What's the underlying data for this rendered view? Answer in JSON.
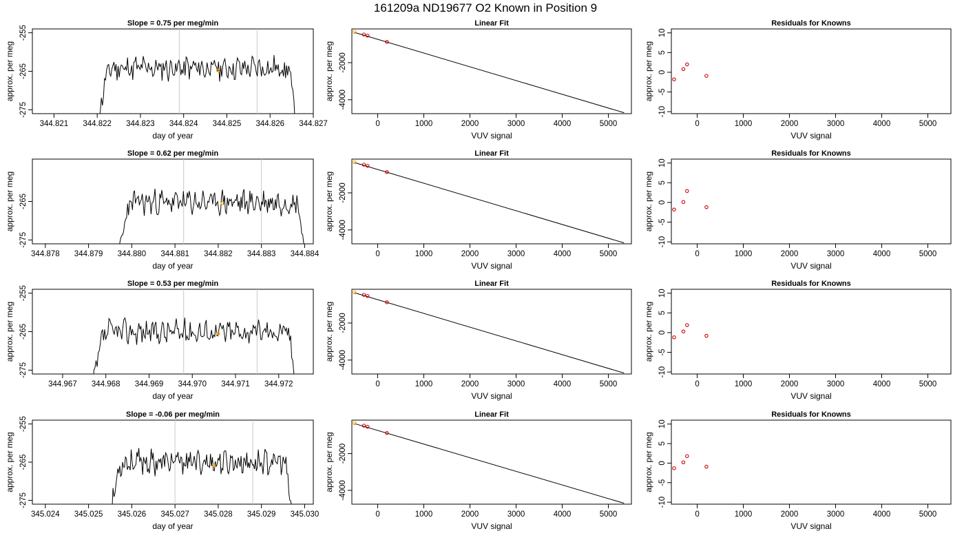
{
  "figure": {
    "title": "161209a     ND19677   O2 Known in Position  9"
  },
  "chart_data": [
    {
      "type": "line",
      "title": "Slope =  0.75  per meg/min",
      "xlabel": "day of year",
      "ylabel": "approx. per meg",
      "xlim": [
        344.8205,
        344.827
      ],
      "ylim": [
        -276,
        -254
      ],
      "xticks": [
        344.821,
        344.822,
        344.823,
        344.824,
        344.825,
        344.826,
        344.827
      ],
      "xtick_labels": [
        "344.821",
        "344.822",
        "344.823",
        "344.824",
        "344.825",
        "344.826",
        "344.827"
      ],
      "yticks": [
        -255,
        -265,
        -275
      ],
      "ytick_labels": [
        "-255",
        "-265",
        "-275"
      ],
      "vlines": [
        344.8239,
        344.8257
      ],
      "start": 344.822,
      "end": 344.8266,
      "plateau": -264.2,
      "seed": 11,
      "highlight": {
        "x": 344.8248,
        "y": -264.8
      },
      "grid": false
    },
    {
      "type": "scatter",
      "title": "Linear Fit",
      "xlabel": "VUV signal",
      "ylabel": "approx. per meg",
      "xlim": [
        -560,
        5500
      ],
      "ylim": [
        -4750,
        -180
      ],
      "xticks": [
        0,
        1000,
        2000,
        3000,
        4000,
        5000
      ],
      "xtick_labels": [
        "0",
        "1000",
        "2000",
        "3000",
        "4000",
        "5000"
      ],
      "yticks": [
        -2000,
        -4000
      ],
      "ytick_labels": [
        "-2000",
        "-4000"
      ],
      "points": [
        {
          "x": -500,
          "y": -350,
          "highlight": true
        },
        {
          "x": -300,
          "y": -480
        },
        {
          "x": -220,
          "y": -540
        },
        {
          "x": 200,
          "y": -880
        }
      ],
      "fit_line": [
        [
          -500,
          -370
        ],
        [
          5340,
          -4700
        ]
      ],
      "grid": false
    },
    {
      "type": "scatter",
      "title": "Residuals for Knowns",
      "xlabel": "VUV signal",
      "ylabel": "approx. per meg",
      "xlim": [
        -560,
        5500
      ],
      "ylim": [
        -10.5,
        11
      ],
      "xticks": [
        0,
        1000,
        2000,
        3000,
        4000,
        5000
      ],
      "xtick_labels": [
        "0",
        "1000",
        "2000",
        "3000",
        "4000",
        "5000"
      ],
      "yticks": [
        10,
        5,
        0,
        -5,
        -10
      ],
      "ytick_labels": [
        "10",
        "5",
        "0",
        "-5",
        "-10"
      ],
      "points": [
        {
          "x": -500,
          "y": -1.8
        },
        {
          "x": -300,
          "y": 0.8
        },
        {
          "x": -220,
          "y": 2.0
        },
        {
          "x": 200,
          "y": -0.9
        }
      ],
      "grid": false
    },
    {
      "type": "line",
      "title": "Slope =  0.62  per meg/min",
      "xlabel": "day of year",
      "ylabel": "approx. per meg",
      "xlim": [
        344.8777,
        344.8842
      ],
      "ylim": [
        -276,
        -254
      ],
      "xticks": [
        344.878,
        344.879,
        344.88,
        344.881,
        344.882,
        344.883,
        344.884
      ],
      "xtick_labels": [
        "344.878",
        "344.879",
        "344.880",
        "344.881",
        "344.882",
        "344.883",
        "344.884"
      ],
      "yticks": [
        -265,
        -275
      ],
      "ytick_labels": [
        "-265",
        "-275"
      ],
      "vlines": [
        344.8812,
        344.883
      ],
      "start": 344.8797,
      "end": 344.884,
      "plateau": -265.2,
      "seed": 23,
      "highlight": {
        "x": 344.8821,
        "y": -265.5
      },
      "grid": false
    },
    {
      "type": "scatter",
      "title": "Linear Fit",
      "xlabel": "VUV signal",
      "ylabel": "approx. per meg",
      "xlim": [
        -560,
        5500
      ],
      "ylim": [
        -4750,
        -180
      ],
      "xticks": [
        0,
        1000,
        2000,
        3000,
        4000,
        5000
      ],
      "xtick_labels": [
        "0",
        "1000",
        "2000",
        "3000",
        "4000",
        "5000"
      ],
      "yticks": [
        -2000,
        -4000
      ],
      "ytick_labels": [
        "-2000",
        "-4000"
      ],
      "points": [
        {
          "x": -500,
          "y": -350,
          "highlight": true
        },
        {
          "x": -300,
          "y": -480
        },
        {
          "x": -220,
          "y": -540
        },
        {
          "x": 200,
          "y": -880
        }
      ],
      "fit_line": [
        [
          -500,
          -370
        ],
        [
          5340,
          -4700
        ]
      ],
      "grid": false
    },
    {
      "type": "scatter",
      "title": "Residuals for Knowns",
      "xlabel": "VUV signal",
      "ylabel": "approx. per meg",
      "xlim": [
        -560,
        5500
      ],
      "ylim": [
        -10.5,
        11
      ],
      "xticks": [
        0,
        1000,
        2000,
        3000,
        4000,
        5000
      ],
      "xtick_labels": [
        "0",
        "1000",
        "2000",
        "3000",
        "4000",
        "5000"
      ],
      "yticks": [
        10,
        5,
        0,
        -5,
        -10
      ],
      "ytick_labels": [
        "10",
        "5",
        "0",
        "-5",
        "-10"
      ],
      "points": [
        {
          "x": -500,
          "y": -1.8
        },
        {
          "x": -300,
          "y": 0.1
        },
        {
          "x": -220,
          "y": 2.9
        },
        {
          "x": 200,
          "y": -1.2
        }
      ],
      "grid": false
    },
    {
      "type": "line",
      "title": "Slope =  0.53  per meg/min",
      "xlabel": "day of year",
      "ylabel": "approx. per meg",
      "xlim": [
        344.9663,
        344.9728
      ],
      "ylim": [
        -276,
        -254
      ],
      "xticks": [
        344.967,
        344.968,
        344.969,
        344.97,
        344.971,
        344.972
      ],
      "xtick_labels": [
        "344.967",
        "344.968",
        "344.969",
        "344.970",
        "344.971",
        "344.972"
      ],
      "yticks": [
        -255,
        -265,
        -275
      ],
      "ytick_labels": [
        "-255",
        "-265",
        "-275"
      ],
      "vlines": [
        344.9698,
        344.9715
      ],
      "start": 344.9677,
      "end": 344.9724,
      "plateau": -265.0,
      "seed": 37,
      "highlight": {
        "x": 344.9706,
        "y": -265.5
      },
      "grid": false
    },
    {
      "type": "scatter",
      "title": "Linear Fit",
      "xlabel": "VUV signal",
      "ylabel": "approx. per meg",
      "xlim": [
        -560,
        5500
      ],
      "ylim": [
        -4750,
        -180
      ],
      "xticks": [
        0,
        1000,
        2000,
        3000,
        4000,
        5000
      ],
      "xtick_labels": [
        "0",
        "1000",
        "2000",
        "3000",
        "4000",
        "5000"
      ],
      "yticks": [
        -2000,
        -4000
      ],
      "ytick_labels": [
        "-2000",
        "-4000"
      ],
      "points": [
        {
          "x": -500,
          "y": -350,
          "highlight": true
        },
        {
          "x": -300,
          "y": -480
        },
        {
          "x": -220,
          "y": -540
        },
        {
          "x": 200,
          "y": -880
        }
      ],
      "fit_line": [
        [
          -500,
          -370
        ],
        [
          5340,
          -4700
        ]
      ],
      "grid": false
    },
    {
      "type": "scatter",
      "title": "Residuals for Knowns",
      "xlabel": "VUV signal",
      "ylabel": "approx. per meg",
      "xlim": [
        -560,
        5500
      ],
      "ylim": [
        -10.5,
        11
      ],
      "xticks": [
        0,
        1000,
        2000,
        3000,
        4000,
        5000
      ],
      "xtick_labels": [
        "0",
        "1000",
        "2000",
        "3000",
        "4000",
        "5000"
      ],
      "yticks": [
        10,
        5,
        0,
        -5,
        -10
      ],
      "ytick_labels": [
        "10",
        "5",
        "0",
        "-5",
        "-10"
      ],
      "points": [
        {
          "x": -500,
          "y": -1.2
        },
        {
          "x": -300,
          "y": 0.3
        },
        {
          "x": -220,
          "y": 1.9
        },
        {
          "x": 200,
          "y": -0.8
        }
      ],
      "grid": false
    },
    {
      "type": "line",
      "title": "Slope =  -0.06  per meg/min",
      "xlabel": "day of year",
      "ylabel": "approx. per meg",
      "xlim": [
        345.0237,
        345.0302
      ],
      "ylim": [
        -276,
        -254
      ],
      "xticks": [
        345.024,
        345.025,
        345.026,
        345.027,
        345.028,
        345.029,
        345.03
      ],
      "xtick_labels": [
        "345.024",
        "345.025",
        "345.026",
        "345.027",
        "345.028",
        "345.029",
        "345.030"
      ],
      "yticks": [
        -255,
        -265,
        -275
      ],
      "ytick_labels": [
        "-255",
        "-265",
        "-275"
      ],
      "vlines": [
        345.027,
        345.0288
      ],
      "start": 345.0255,
      "end": 345.0297,
      "plateau": -265.0,
      "seed": 53,
      "highlight": {
        "x": 345.0279,
        "y": -265.8
      },
      "grid": false
    },
    {
      "type": "scatter",
      "title": "Linear Fit",
      "xlabel": "VUV signal",
      "ylabel": "approx. per meg",
      "xlim": [
        -560,
        5500
      ],
      "ylim": [
        -4750,
        -180
      ],
      "xticks": [
        0,
        1000,
        2000,
        3000,
        4000,
        5000
      ],
      "xtick_labels": [
        "0",
        "1000",
        "2000",
        "3000",
        "4000",
        "5000"
      ],
      "yticks": [
        -2000,
        -4000
      ],
      "ytick_labels": [
        "-2000",
        "-4000"
      ],
      "points": [
        {
          "x": -500,
          "y": -350,
          "highlight": true
        },
        {
          "x": -300,
          "y": -480
        },
        {
          "x": -220,
          "y": -540
        },
        {
          "x": 200,
          "y": -880
        }
      ],
      "fit_line": [
        [
          -500,
          -370
        ],
        [
          5340,
          -4700
        ]
      ],
      "grid": false
    },
    {
      "type": "scatter",
      "title": "Residuals for Knowns",
      "xlabel": "VUV signal",
      "ylabel": "approx. per meg",
      "xlim": [
        -560,
        5500
      ],
      "ylim": [
        -10.5,
        11
      ],
      "xticks": [
        0,
        1000,
        2000,
        3000,
        4000,
        5000
      ],
      "xtick_labels": [
        "0",
        "1000",
        "2000",
        "3000",
        "4000",
        "5000"
      ],
      "yticks": [
        10,
        5,
        0,
        -5,
        -10
      ],
      "ytick_labels": [
        "10",
        "5",
        "0",
        "-5",
        "-10"
      ],
      "points": [
        {
          "x": -500,
          "y": -1.3
        },
        {
          "x": -300,
          "y": 0.2
        },
        {
          "x": -220,
          "y": 1.8
        },
        {
          "x": 200,
          "y": -0.9
        }
      ],
      "grid": false
    }
  ],
  "colors": {
    "line": "#000000",
    "highlight": "#ffa500",
    "residual_point": "#cc0000",
    "vline": "#c8c8c8",
    "frame": "#000000"
  }
}
